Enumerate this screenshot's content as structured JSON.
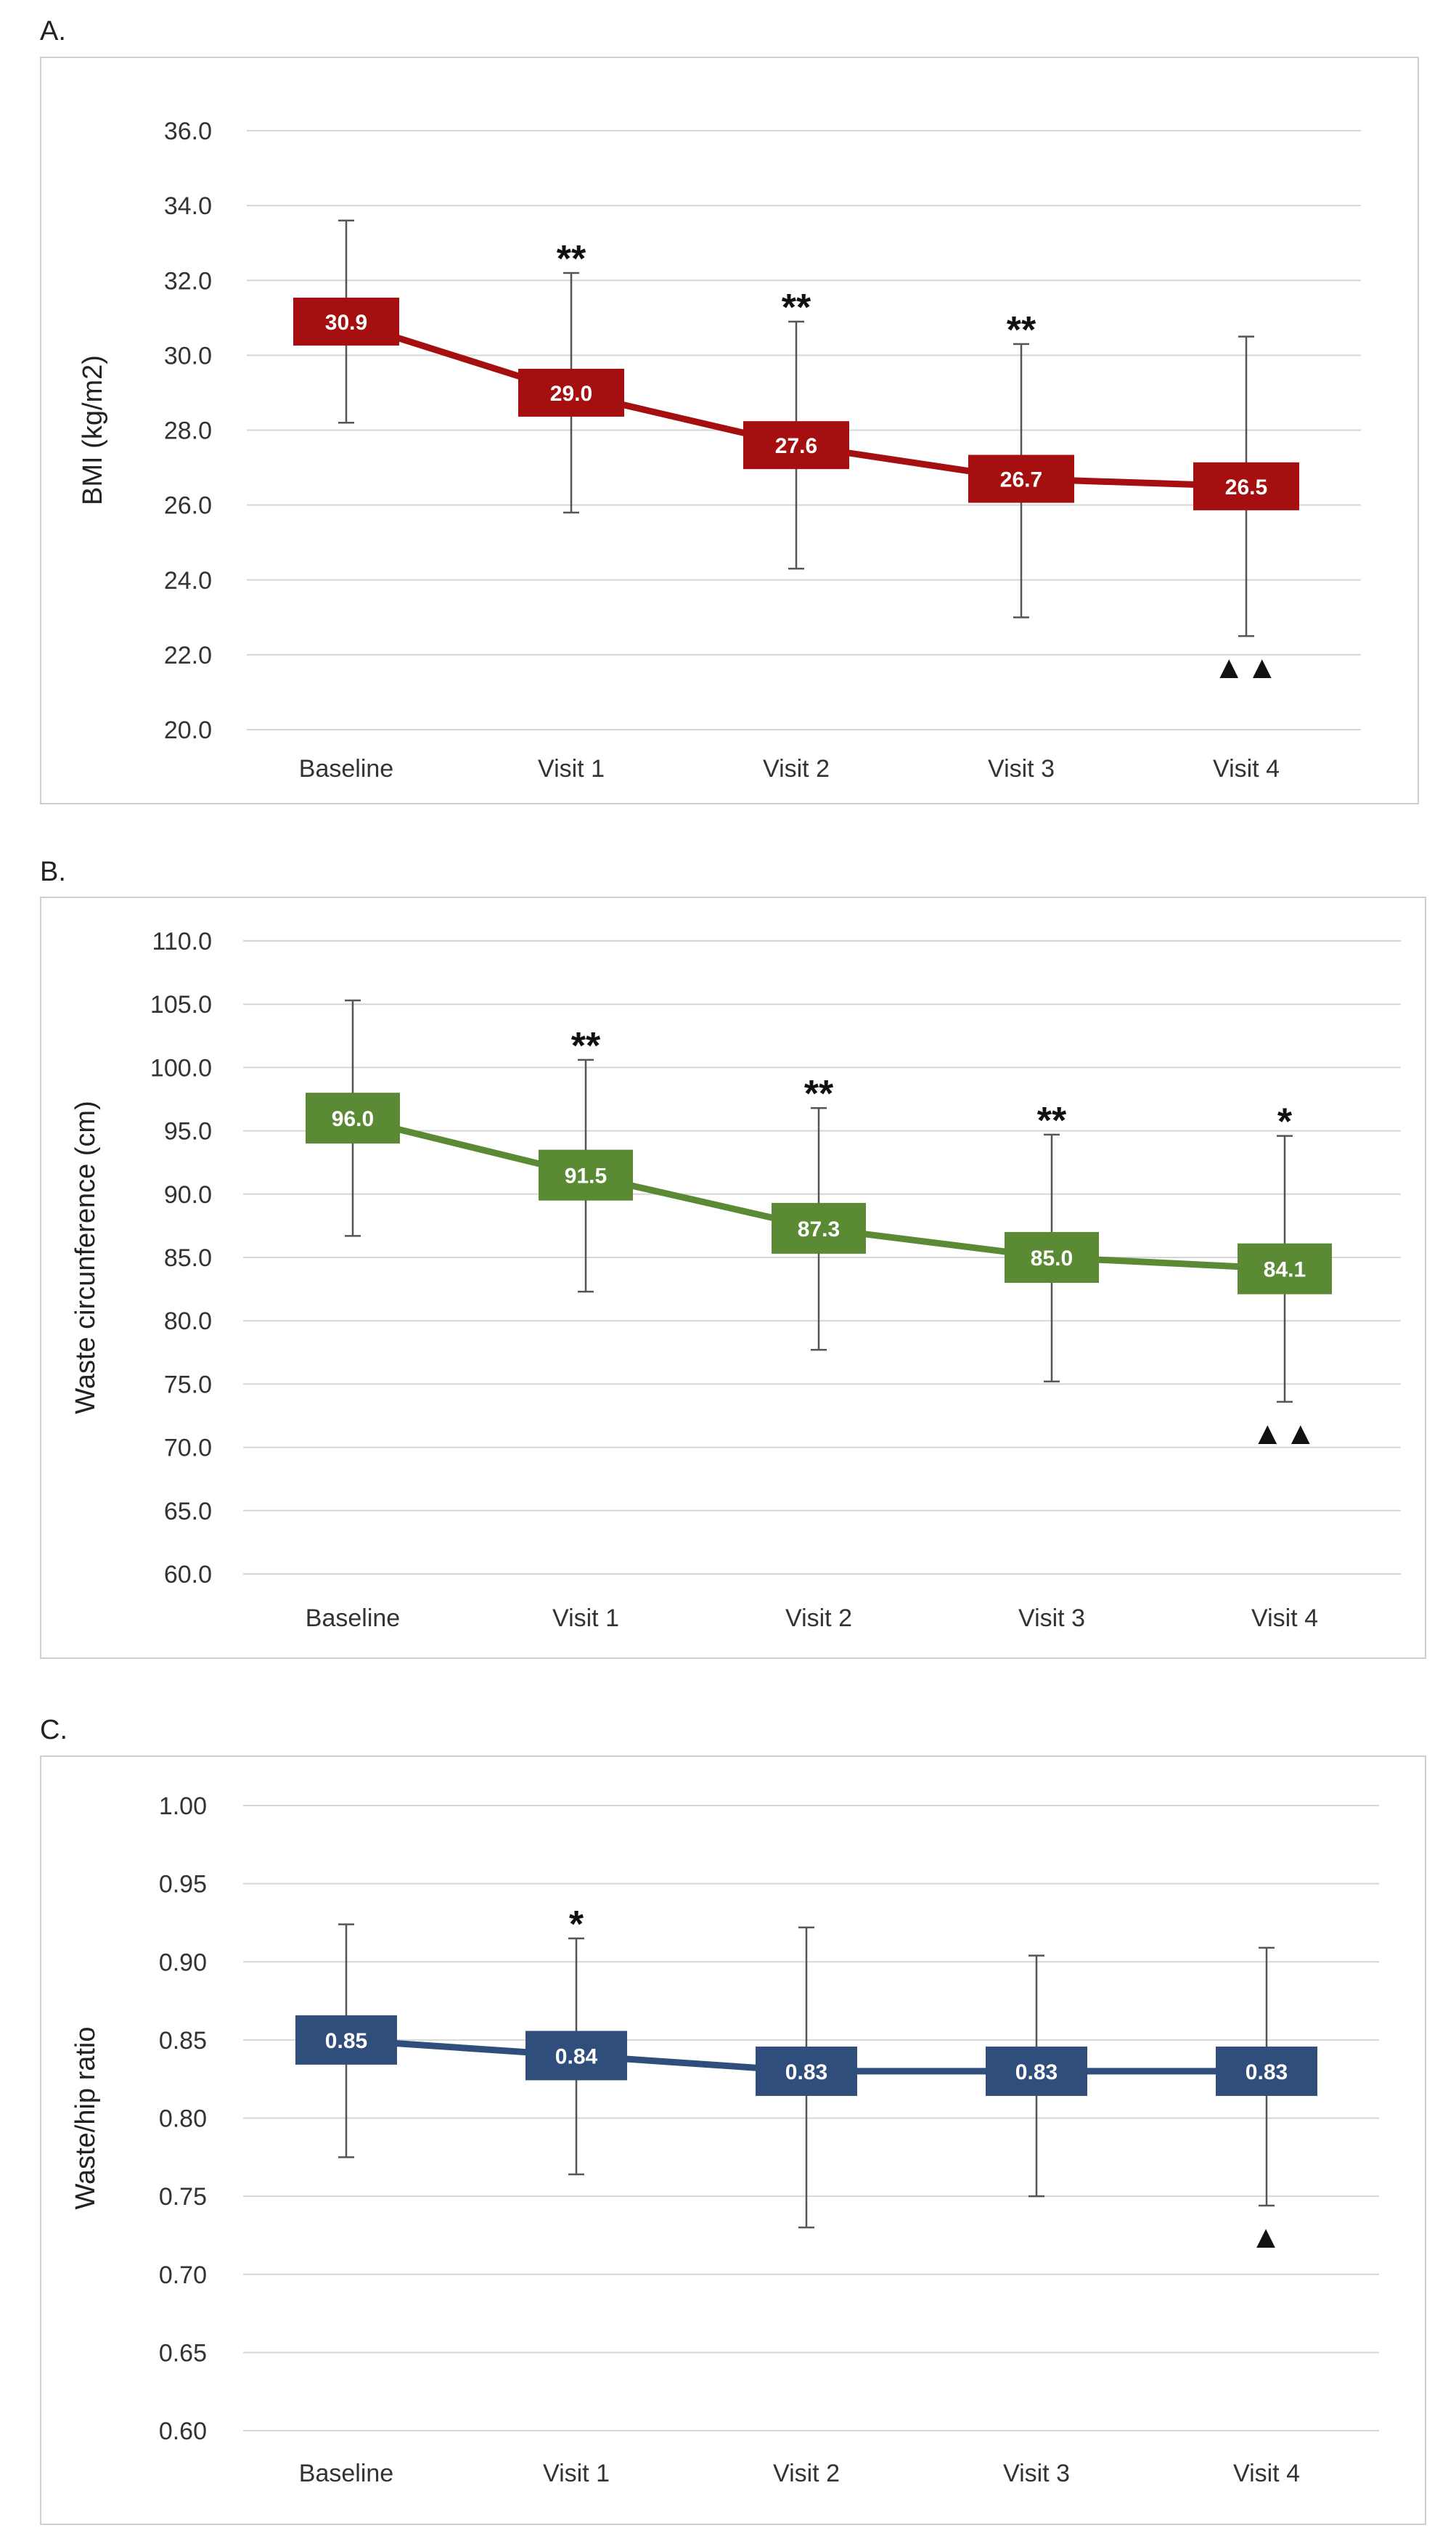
{
  "chart_data": [
    {
      "panel": "A.",
      "type": "line",
      "ylabel": "BMI (kg/m2)",
      "categories": [
        "Baseline",
        "Visit 1",
        "Visit 2",
        "Visit 3",
        "Visit 4"
      ],
      "values": [
        30.9,
        29.0,
        27.6,
        26.7,
        26.5
      ],
      "value_labels": [
        "30.9",
        "29.0",
        "27.6",
        "26.7",
        "26.5"
      ],
      "err_low": [
        28.2,
        25.8,
        24.3,
        23.0,
        22.5
      ],
      "err_high": [
        33.6,
        32.2,
        30.9,
        30.3,
        30.5
      ],
      "ylim": [
        20,
        36
      ],
      "yticks": [
        20,
        22,
        24,
        26,
        28,
        30,
        32,
        34,
        36
      ],
      "ytick_labels": [
        "20.0",
        "22.0",
        "24.0",
        "26.0",
        "28.0",
        "30.0",
        "32.0",
        "34.0",
        "36.0"
      ],
      "annot_top": [
        "",
        "**",
        "**",
        "**",
        ""
      ],
      "annot_bottom": [
        "",
        "",
        "",
        "",
        "▲▲"
      ],
      "color": "#a50f0f",
      "grid": true
    },
    {
      "panel": "B.",
      "type": "line",
      "ylabel": "Waste circunference (cm)",
      "categories": [
        "Baseline",
        "Visit 1",
        "Visit 2",
        "Visit 3",
        "Visit 4"
      ],
      "values": [
        96.0,
        91.5,
        87.3,
        85.0,
        84.1
      ],
      "value_labels": [
        "96.0",
        "91.5",
        "87.3",
        "85.0",
        "84.1"
      ],
      "err_low": [
        86.7,
        82.3,
        77.7,
        75.2,
        73.6
      ],
      "err_high": [
        105.3,
        100.6,
        96.8,
        94.7,
        94.6
      ],
      "ylim": [
        60,
        110
      ],
      "yticks": [
        60,
        65,
        70,
        75,
        80,
        85,
        90,
        95,
        100,
        105,
        110
      ],
      "ytick_labels": [
        "60.0",
        "65.0",
        "70.0",
        "75.0",
        "80.0",
        "85.0",
        "90.0",
        "95.0",
        "100.0",
        "105.0",
        "110.0"
      ],
      "annot_top": [
        "",
        "**",
        "**",
        "**",
        "*"
      ],
      "annot_bottom": [
        "",
        "",
        "",
        "",
        "▲▲"
      ],
      "color": "#5a8a33",
      "grid": true
    },
    {
      "panel": "C.",
      "type": "line",
      "ylabel": "Waste/hip ratio",
      "categories": [
        "Baseline",
        "Visit 1",
        "Visit 2",
        "Visit 3",
        "Visit 4"
      ],
      "values": [
        0.85,
        0.84,
        0.83,
        0.83,
        0.83
      ],
      "value_labels": [
        "0.85",
        "0.84",
        "0.83",
        "0.83",
        "0.83"
      ],
      "err_low": [
        0.775,
        0.764,
        0.73,
        0.75,
        0.744
      ],
      "err_high": [
        0.924,
        0.915,
        0.922,
        0.904,
        0.909
      ],
      "ylim": [
        0.6,
        1.0
      ],
      "yticks": [
        0.6,
        0.65,
        0.7,
        0.75,
        0.8,
        0.85,
        0.9,
        0.95,
        1.0
      ],
      "ytick_labels": [
        "0.60",
        "0.65",
        "0.70",
        "0.75",
        "0.80",
        "0.85",
        "0.90",
        "0.95",
        "1.00"
      ],
      "annot_top": [
        "",
        "*",
        "",
        "",
        ""
      ],
      "annot_bottom": [
        "",
        "",
        "",
        "",
        "▲"
      ],
      "color": "#2f4e7c",
      "grid": true
    }
  ]
}
